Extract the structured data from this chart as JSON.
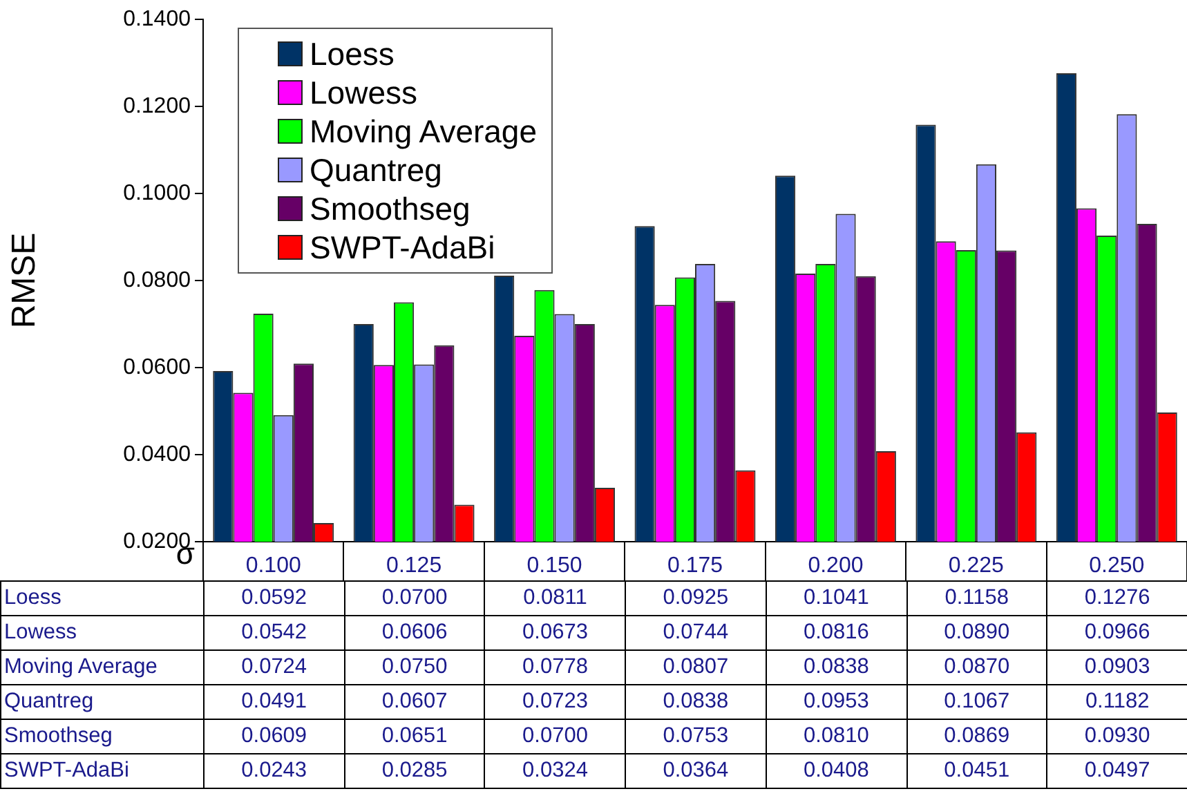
{
  "chart_data": {
    "type": "bar",
    "xlabel": "σ",
    "ylabel": "RMSE",
    "categories": [
      "0.100",
      "0.125",
      "0.150",
      "0.175",
      "0.200",
      "0.225",
      "0.250"
    ],
    "ylim": [
      0.02,
      0.14
    ],
    "yticks": [
      {
        "value": 0.02,
        "label": "0.0200"
      },
      {
        "value": 0.04,
        "label": "0.0400"
      },
      {
        "value": 0.06,
        "label": "0.0600"
      },
      {
        "value": 0.08,
        "label": "0.0800"
      },
      {
        "value": 0.1,
        "label": "0.1000"
      },
      {
        "value": 0.12,
        "label": "0.1200"
      },
      {
        "value": 0.14,
        "label": "0.1400"
      }
    ],
    "legend": "top left",
    "series": [
      {
        "name": "Loess",
        "color": "#003366",
        "values": [
          0.0592,
          0.07,
          0.0811,
          0.0925,
          0.1041,
          0.1158,
          0.1276
        ],
        "value_labels": [
          "0.0592",
          "0.0700",
          "0.0811",
          "0.0925",
          "0.1041",
          "0.1158",
          "0.1276"
        ]
      },
      {
        "name": "Lowess",
        "color": "#ff00ff",
        "values": [
          0.0542,
          0.0606,
          0.0673,
          0.0744,
          0.0816,
          0.089,
          0.0966
        ],
        "value_labels": [
          "0.0542",
          "0.0606",
          "0.0673",
          "0.0744",
          "0.0816",
          "0.0890",
          "0.0966"
        ]
      },
      {
        "name": "Moving Average",
        "color": "#00ff00",
        "values": [
          0.0724,
          0.075,
          0.0778,
          0.0807,
          0.0838,
          0.087,
          0.0903
        ],
        "value_labels": [
          "0.0724",
          "0.0750",
          "0.0778",
          "0.0807",
          "0.0838",
          "0.0870",
          "0.0903"
        ]
      },
      {
        "name": "Quantreg",
        "color": "#9999ff",
        "values": [
          0.0491,
          0.0607,
          0.0723,
          0.0838,
          0.0953,
          0.1067,
          0.1182
        ],
        "value_labels": [
          "0.0491",
          "0.0607",
          "0.0723",
          "0.0838",
          "0.0953",
          "0.1067",
          "0.1182"
        ]
      },
      {
        "name": "Smoothseg",
        "color": "#660066",
        "values": [
          0.0609,
          0.0651,
          0.07,
          0.0753,
          0.081,
          0.0869,
          0.093
        ],
        "value_labels": [
          "0.0609",
          "0.0651",
          "0.0700",
          "0.0753",
          "0.0810",
          "0.0869",
          "0.0930"
        ]
      },
      {
        "name": "SWPT-AdaBi",
        "color": "#ff0000",
        "values": [
          0.0243,
          0.0285,
          0.0324,
          0.0364,
          0.0408,
          0.0451,
          0.0497
        ],
        "value_labels": [
          "0.0243",
          "0.0285",
          "0.0324",
          "0.0364",
          "0.0408",
          "0.0451",
          "0.0497"
        ]
      }
    ]
  }
}
